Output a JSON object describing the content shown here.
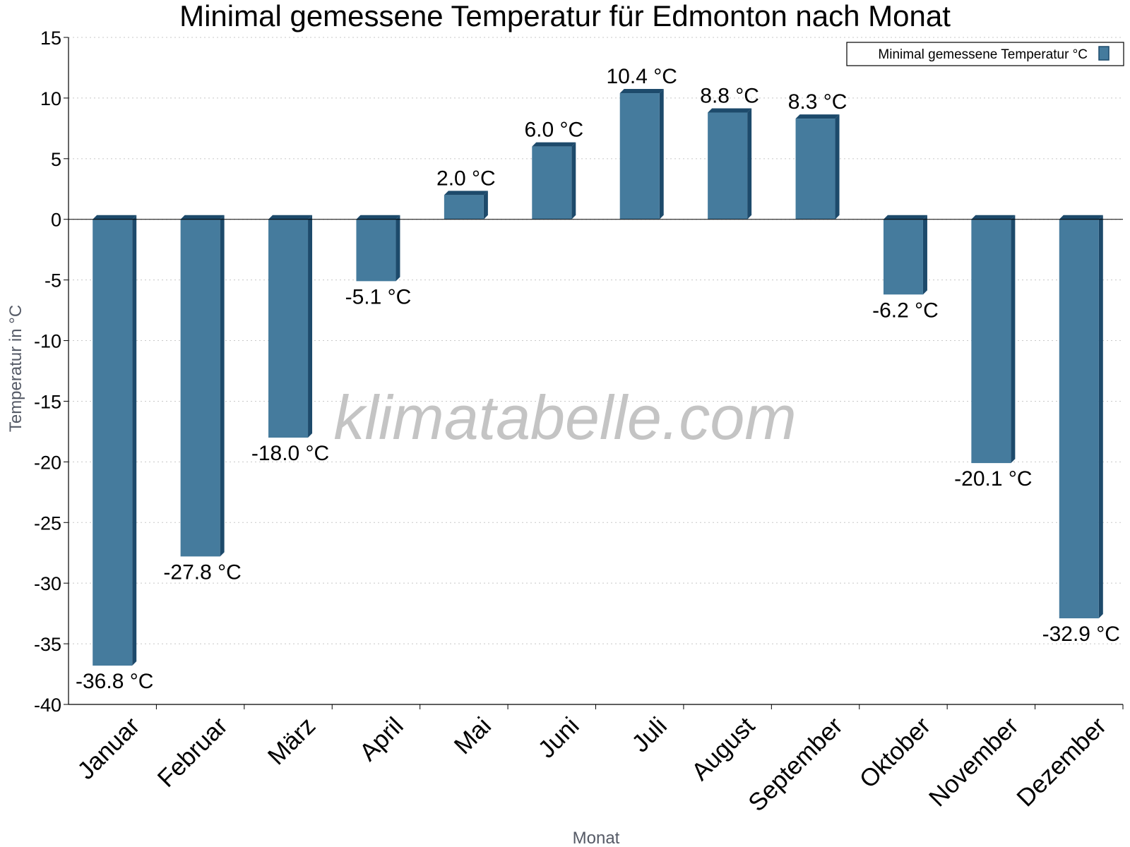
{
  "chart_data": {
    "type": "bar",
    "title": "Minimal gemessene Temperatur für Edmonton nach Monat",
    "xlabel": "Monat",
    "ylabel": "Temperatur in °C",
    "ylim": [
      -40,
      15
    ],
    "ytick_step": 5,
    "grid": true,
    "legend_position": "top-right",
    "categories": [
      "Januar",
      "Februar",
      "März",
      "April",
      "Mai",
      "Juni",
      "Juli",
      "August",
      "September",
      "Oktober",
      "November",
      "Dezember"
    ],
    "series": [
      {
        "name": "Minimal gemessene Temperatur °C",
        "color": "#457b9d",
        "side_color": "#1d4a6b",
        "values": [
          -36.8,
          -27.8,
          -18.0,
          -5.1,
          2.0,
          6.0,
          10.4,
          8.8,
          8.3,
          -6.2,
          -20.1,
          -32.9
        ],
        "labels": [
          "-36.8 °C",
          "-27.8 °C",
          "-18.0 °C",
          "-5.1 °C",
          "2.0 °C",
          "6.0 °C",
          "10.4 °C",
          "8.8 °C",
          "8.3 °C",
          "-6.2 °C",
          "-20.1 °C",
          "-32.9 °C"
        ]
      }
    ],
    "watermark": "klimatabelle.com"
  }
}
